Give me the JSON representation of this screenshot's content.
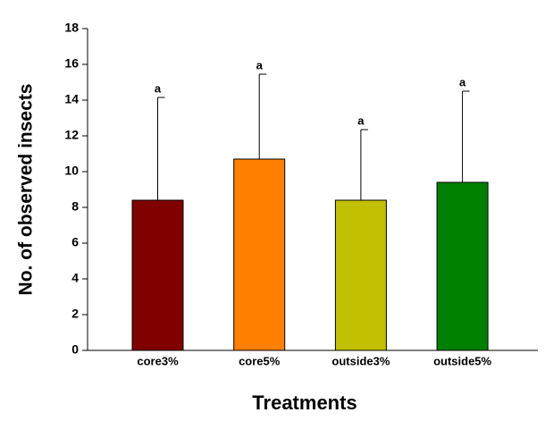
{
  "chart_data": {
    "type": "bar",
    "x_label": "Treatments",
    "y_label": "No. of observed insects",
    "categories": [
      "core3%",
      "core5%",
      "outside3%",
      "outside5%"
    ],
    "values": [
      8.4,
      10.7,
      8.4,
      9.4
    ],
    "errors": [
      5.75,
      4.75,
      3.95,
      5.1
    ],
    "annotations": [
      "a",
      "a",
      "a",
      "a"
    ],
    "colors": [
      "#800000",
      "#ff8000",
      "#c0c000",
      "#008000"
    ],
    "ylim": [
      0,
      18
    ],
    "yticks": [
      0,
      2,
      4,
      6,
      8,
      10,
      12,
      14,
      16,
      18
    ],
    "grid": false
  }
}
